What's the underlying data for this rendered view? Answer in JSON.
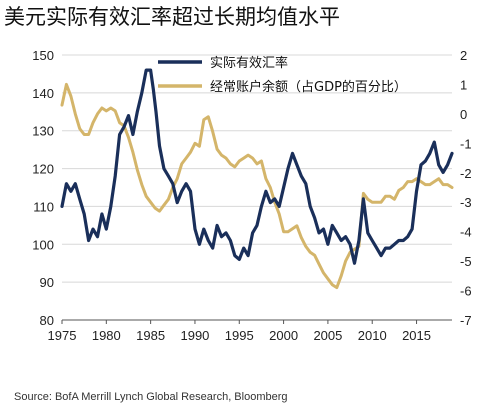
{
  "chart_data": {
    "type": "line",
    "title": "美元实际有效汇率超过长期均值水平",
    "source": "Source: BofA Merrill Lynch Global Research, Bloomberg",
    "xlim": [
      1975,
      2019
    ],
    "x_ticks": [
      1975,
      1980,
      1985,
      1990,
      1995,
      2000,
      2005,
      2010,
      2015
    ],
    "y_left": {
      "lim": [
        80,
        150
      ],
      "ticks": [
        80,
        90,
        100,
        110,
        120,
        130,
        140,
        150
      ]
    },
    "y_right": {
      "lim": [
        -7,
        2
      ],
      "ticks": [
        -7,
        -6,
        -5,
        -4,
        -3,
        -2,
        -1,
        0,
        1,
        2
      ]
    },
    "grid": "horizontal",
    "legend_position": "top-center",
    "series": [
      {
        "name": "实际有效汇率",
        "axis": "left",
        "color": "#1a2f5a",
        "x": [
          1975.0,
          1975.5,
          1976.0,
          1976.5,
          1977.0,
          1977.5,
          1978.0,
          1978.5,
          1979.0,
          1979.5,
          1980.0,
          1980.5,
          1981.0,
          1981.5,
          1982.0,
          1982.5,
          1983.0,
          1983.5,
          1984.0,
          1984.5,
          1985.0,
          1985.3,
          1985.6,
          1986.0,
          1986.5,
          1987.0,
          1987.5,
          1988.0,
          1988.5,
          1989.0,
          1989.5,
          1990.0,
          1990.5,
          1991.0,
          1991.5,
          1992.0,
          1992.5,
          1993.0,
          1993.5,
          1994.0,
          1994.5,
          1995.0,
          1995.5,
          1996.0,
          1996.5,
          1997.0,
          1997.5,
          1998.0,
          1998.5,
          1999.0,
          1999.5,
          2000.0,
          2000.5,
          2001.0,
          2001.5,
          2002.0,
          2002.5,
          2003.0,
          2003.5,
          2004.0,
          2004.5,
          2005.0,
          2005.5,
          2006.0,
          2006.5,
          2007.0,
          2007.5,
          2008.0,
          2008.5,
          2009.0,
          2009.5,
          2010.0,
          2010.5,
          2011.0,
          2011.5,
          2012.0,
          2012.5,
          2013.0,
          2013.5,
          2014.0,
          2014.5,
          2015.0,
          2015.5,
          2016.0,
          2016.5,
          2017.0,
          2017.5,
          2018.0,
          2018.5,
          2019.0
        ],
        "y": [
          110,
          116,
          114,
          116,
          112,
          108,
          101,
          104,
          102,
          108,
          104,
          110,
          118,
          129,
          131,
          134,
          129,
          135,
          140,
          146,
          146,
          141,
          135,
          126,
          120,
          118,
          116,
          111,
          114,
          116,
          114,
          104,
          100,
          104,
          101,
          99,
          105,
          102,
          103,
          101,
          97,
          96,
          99,
          97,
          103,
          105,
          110,
          114,
          111,
          112,
          110,
          115,
          120,
          124,
          121,
          118,
          116,
          110,
          107,
          103,
          104,
          100,
          105,
          103,
          101,
          102,
          100,
          95,
          101,
          112,
          103,
          101,
          99,
          97,
          99,
          99,
          100,
          101,
          101,
          102,
          104,
          114,
          121,
          122,
          124,
          127,
          121,
          119,
          121,
          124
        ]
      },
      {
        "name": "经常账户余额（占GDP的百分比）",
        "axis": "right",
        "color": "#d4b56a",
        "x": [
          1975.0,
          1975.5,
          1976.0,
          1976.5,
          1977.0,
          1977.5,
          1978.0,
          1978.5,
          1979.0,
          1979.5,
          1980.0,
          1980.5,
          1981.0,
          1981.5,
          1982.0,
          1982.5,
          1983.0,
          1983.5,
          1984.0,
          1984.5,
          1985.0,
          1985.5,
          1986.0,
          1986.5,
          1987.0,
          1987.5,
          1988.0,
          1988.5,
          1989.0,
          1989.5,
          1990.0,
          1990.5,
          1991.0,
          1991.5,
          1992.0,
          1992.5,
          1993.0,
          1993.5,
          1994.0,
          1994.5,
          1995.0,
          1995.5,
          1996.0,
          1996.5,
          1997.0,
          1997.5,
          1998.0,
          1998.5,
          1999.0,
          1999.5,
          2000.0,
          2000.5,
          2001.0,
          2001.5,
          2002.0,
          2002.5,
          2003.0,
          2003.5,
          2004.0,
          2004.5,
          2005.0,
          2005.5,
          2006.0,
          2006.5,
          2007.0,
          2007.5,
          2008.0,
          2008.5,
          2009.0,
          2009.5,
          2010.0,
          2010.5,
          2011.0,
          2011.5,
          2012.0,
          2012.5,
          2013.0,
          2013.5,
          2014.0,
          2014.5,
          2015.0,
          2015.5,
          2016.0,
          2016.5,
          2017.0,
          2017.5,
          2018.0,
          2018.5,
          2019.0
        ],
        "y": [
          0.3,
          1.0,
          0.6,
          0.0,
          -0.5,
          -0.7,
          -0.7,
          -0.3,
          0.0,
          0.2,
          0.1,
          0.2,
          0.1,
          -0.3,
          -0.4,
          -0.8,
          -1.3,
          -1.9,
          -2.4,
          -2.8,
          -3.0,
          -3.2,
          -3.3,
          -3.1,
          -2.9,
          -2.5,
          -2.2,
          -1.7,
          -1.5,
          -1.3,
          -1.0,
          -1.1,
          -0.2,
          -0.1,
          -0.6,
          -1.2,
          -1.4,
          -1.5,
          -1.7,
          -1.8,
          -1.6,
          -1.5,
          -1.4,
          -1.5,
          -1.7,
          -1.6,
          -2.2,
          -2.5,
          -3.0,
          -3.4,
          -4.0,
          -4.0,
          -3.9,
          -3.8,
          -4.2,
          -4.5,
          -4.7,
          -4.8,
          -5.1,
          -5.4,
          -5.6,
          -5.8,
          -5.9,
          -5.5,
          -5.0,
          -4.7,
          -4.6,
          -4.5,
          -2.7,
          -2.9,
          -3.0,
          -3.0,
          -3.0,
          -2.8,
          -2.8,
          -2.9,
          -2.6,
          -2.5,
          -2.3,
          -2.3,
          -2.2,
          -2.3,
          -2.4,
          -2.4,
          -2.3,
          -2.2,
          -2.4,
          -2.4,
          -2.5
        ]
      }
    ]
  }
}
